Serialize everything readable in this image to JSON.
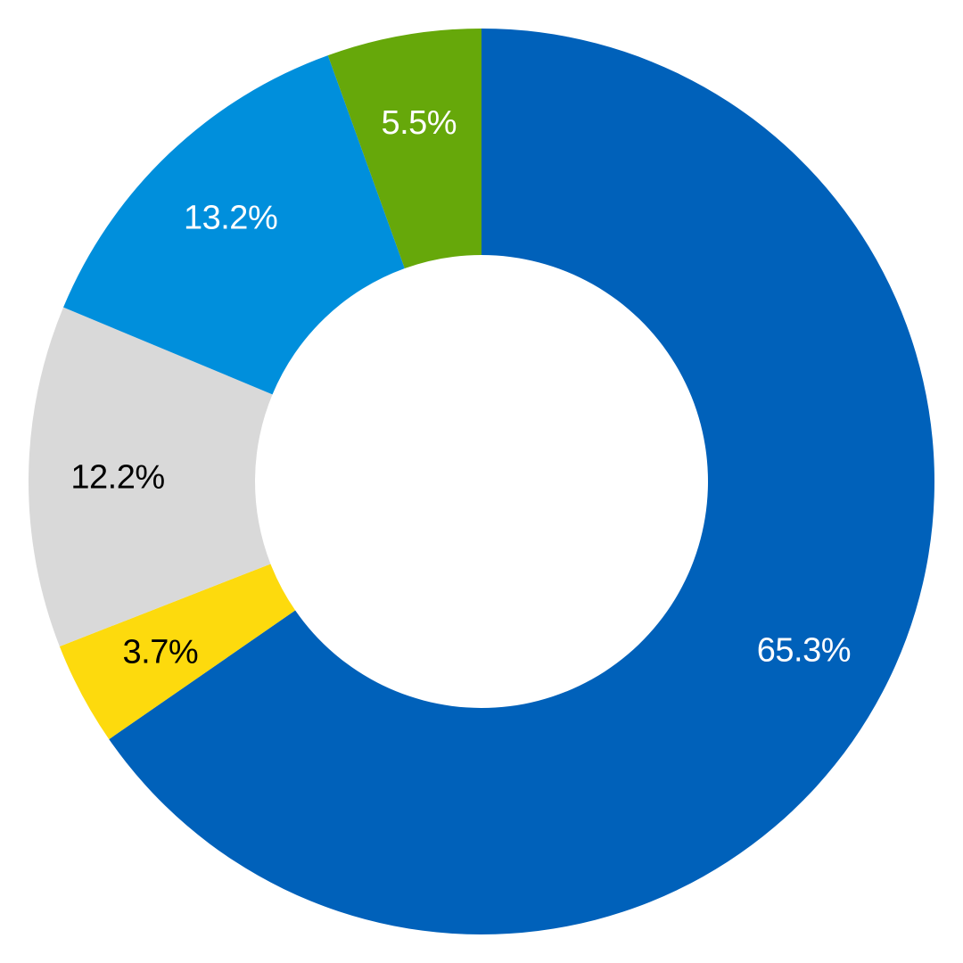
{
  "chart_data": {
    "type": "pie",
    "variant": "donut",
    "start": "top",
    "direction": "clockwise",
    "slices": [
      {
        "value": 65.3,
        "label": "65.3%",
        "color": "#0061BA",
        "label_color": "#FFFFFF"
      },
      {
        "value": 3.7,
        "label": "3.7%",
        "color": "#FDDA0D",
        "label_color": "#000000"
      },
      {
        "value": 12.2,
        "label": "12.2%",
        "color": "#D9D9D9",
        "label_color": "#000000"
      },
      {
        "value": 13.2,
        "label": "13.2%",
        "color": "#008FDC",
        "label_color": "#FFFFFF"
      },
      {
        "value": 5.5,
        "label": "5.5%",
        "color": "#66A80A",
        "label_color": "#FFFFFF"
      }
    ]
  }
}
